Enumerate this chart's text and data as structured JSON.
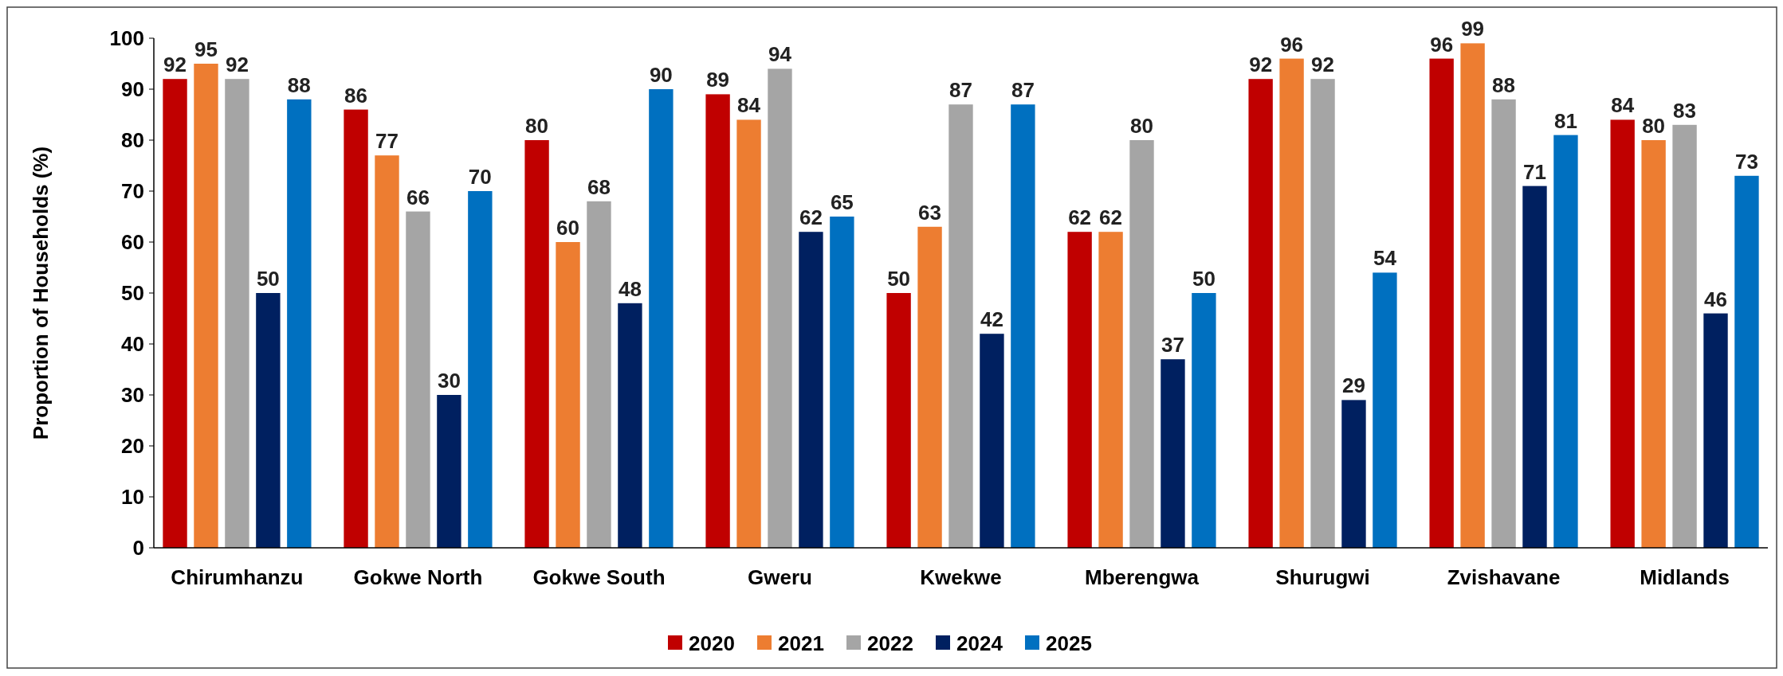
{
  "chart_data": {
    "type": "bar",
    "ylabel": "Proportion of Households (%)",
    "categories": [
      "Chirumhanzu",
      "Gokwe North",
      "Gokwe South",
      "Gweru",
      "Kwekwe",
      "Mberengwa",
      "Shurugwi",
      "Zvishavane",
      "Midlands"
    ],
    "series": [
      {
        "name": "2020",
        "color": "#c00000",
        "values": [
          92,
          86,
          80,
          89,
          50,
          62,
          92,
          96,
          84
        ]
      },
      {
        "name": "2021",
        "color": "#ed7d31",
        "values": [
          95,
          77,
          60,
          84,
          63,
          62,
          96,
          99,
          80
        ]
      },
      {
        "name": "2022",
        "color": "#a5a5a5",
        "values": [
          92,
          66,
          68,
          94,
          87,
          80,
          92,
          88,
          83
        ]
      },
      {
        "name": "2024",
        "color": "#002060",
        "values": [
          50,
          30,
          48,
          62,
          42,
          37,
          29,
          71,
          46
        ]
      },
      {
        "name": "2025",
        "color": "#0070c0",
        "values": [
          88,
          70,
          90,
          65,
          87,
          50,
          54,
          81,
          73
        ]
      }
    ],
    "ylim": [
      0,
      100
    ],
    "yticks": [
      0,
      10,
      20,
      30,
      40,
      50,
      60,
      70,
      80,
      90,
      100
    ],
    "grid": false,
    "legend": "bottom",
    "data_labels": true
  }
}
